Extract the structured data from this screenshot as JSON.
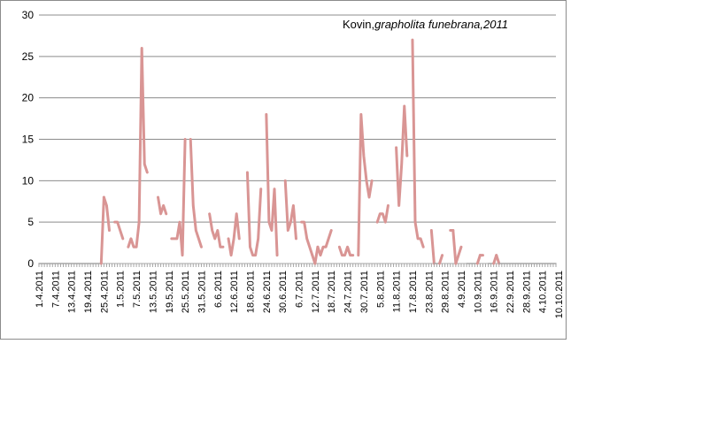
{
  "chart_data": {
    "type": "line",
    "title": {
      "prefix": "Kovin,",
      "species": "grapholita funebrana",
      "suffix": ",2011"
    },
    "xlabel": "",
    "ylabel": "",
    "ylim": [
      0,
      30
    ],
    "yticks": [
      0,
      5,
      10,
      15,
      20,
      25,
      30
    ],
    "grid": true,
    "legend": "none",
    "start_date": "1.4.2011",
    "xticks": [
      "1.4.2011",
      "7.4.2011",
      "13.4.2011",
      "19.4.2011",
      "25.4.2011",
      "1.5.2011",
      "7.5.2011",
      "13.5.2011",
      "19.5.2011",
      "25.5.2011",
      "31.5.2011",
      "6.6.2011",
      "12.6.2011",
      "18.6.2011",
      "24.6.2011",
      "30.6.2011",
      "6.7.2011",
      "12.7.2011",
      "18.7.2011",
      "24.7.2011",
      "30.7.2011",
      "5.8.2011",
      "11.8.2011",
      "17.8.2011",
      "23.8.2011",
      "29.8.2011",
      "4.9.2011",
      "10.9.2011",
      "16.9.2011",
      "22.9.2011",
      "28.9.2011",
      "4.10.2011",
      "10.10.2011"
    ],
    "colors": {
      "line": "#d99594",
      "zero_line": "#a6a6a6",
      "grid": "#8c8c8c"
    },
    "series": [
      {
        "values": [
          0,
          0,
          0,
          0,
          0,
          0,
          0,
          0,
          0,
          0,
          0,
          0,
          0,
          0,
          0,
          0,
          0,
          0,
          0,
          0,
          0,
          0,
          0,
          0,
          8,
          7,
          4,
          null,
          5,
          5,
          4,
          3,
          null,
          2,
          3,
          2,
          2,
          5,
          26,
          12,
          11,
          null,
          null,
          null,
          8,
          6,
          7,
          6,
          null,
          3,
          3,
          3,
          5,
          1,
          15,
          null,
          15,
          7,
          4,
          3,
          2,
          null,
          null,
          6,
          4,
          3,
          4,
          2,
          2,
          null,
          3,
          1,
          3,
          6,
          3,
          null,
          null,
          11,
          2,
          1,
          1,
          3,
          9,
          null,
          18,
          5,
          4,
          9,
          1,
          null,
          null,
          10,
          4,
          5,
          7,
          3,
          null,
          5,
          5,
          3,
          2,
          1,
          0,
          2,
          1,
          2,
          2,
          3,
          4,
          null,
          null,
          2,
          1,
          1,
          2,
          1,
          1,
          null,
          1,
          18,
          13,
          10,
          8,
          10,
          null,
          5,
          6,
          6,
          5,
          7,
          null,
          null,
          14,
          7,
          12,
          19,
          13,
          null,
          27,
          5,
          3,
          3,
          2,
          null,
          null,
          4,
          0,
          0,
          0,
          1,
          null,
          null,
          4,
          4,
          0,
          1,
          2,
          null,
          0,
          0,
          0,
          0,
          0,
          1,
          1,
          null,
          0,
          0,
          0,
          1,
          0,
          0,
          0,
          0,
          0,
          0,
          0,
          0,
          0,
          0,
          0,
          0,
          0,
          0,
          0,
          0,
          0,
          0,
          0,
          0,
          0,
          0
        ]
      }
    ]
  }
}
